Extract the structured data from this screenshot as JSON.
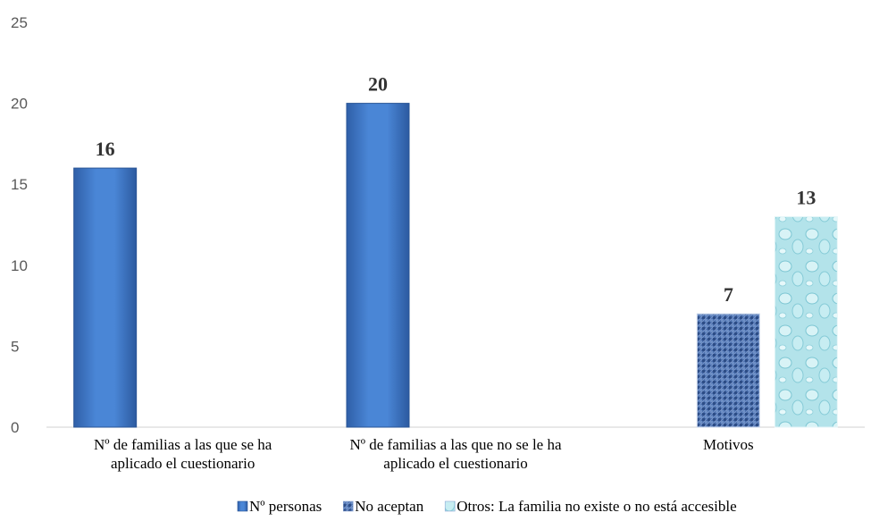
{
  "chart_data": {
    "type": "bar",
    "categories": [
      [
        "Nº de familias a las que se ha",
        "aplicado el cuestionario"
      ],
      [
        "Nº de familias a las que no se le ha",
        "aplicado el cuestionario"
      ],
      [
        "Motivos"
      ]
    ],
    "series": [
      {
        "name": "Nº personas",
        "values": [
          16,
          20,
          null
        ],
        "color": "#3f75c2"
      },
      {
        "name": "No aceptan",
        "values": [
          null,
          null,
          7
        ],
        "color": "#3a5f9e"
      },
      {
        "name": "Otros: La familia no existe o no está accesible",
        "values": [
          null,
          null,
          13
        ],
        "color": "#a9dfe8"
      }
    ],
    "ylim": [
      0,
      25
    ],
    "yticks": [
      0,
      5,
      10,
      15,
      20,
      25
    ],
    "grid": false,
    "legend": "bottom"
  }
}
